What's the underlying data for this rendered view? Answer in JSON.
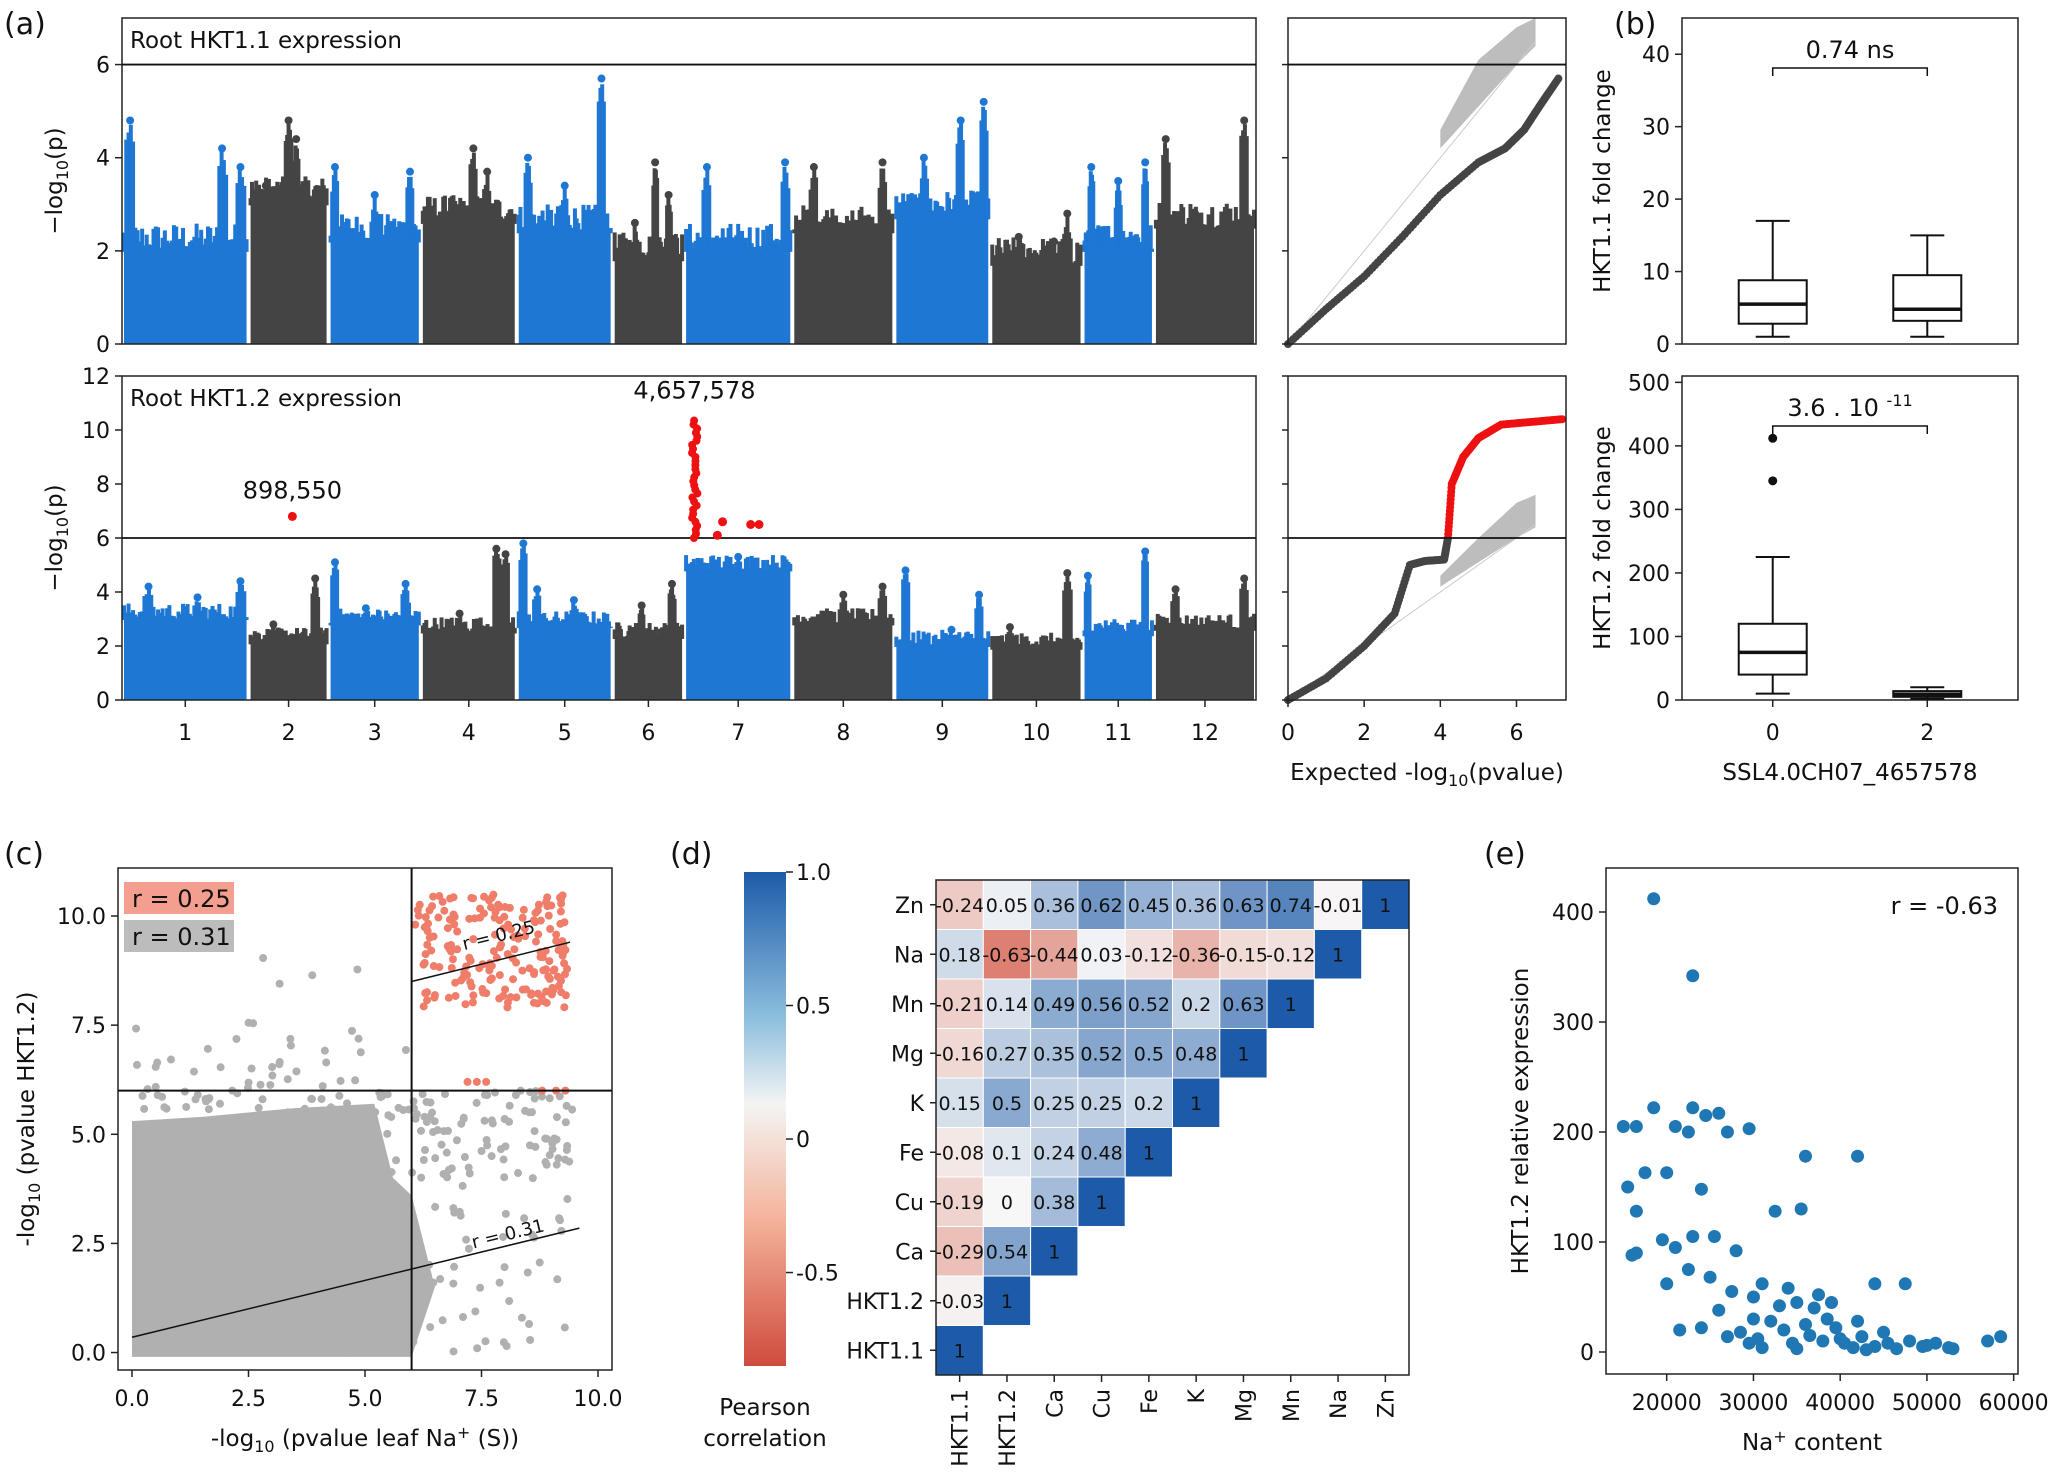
{
  "colors": {
    "blue": "#1f77d4",
    "dark": "#444444",
    "red": "#ee1111",
    "grey": "#b0b0b0",
    "salmon": "#ef7d69",
    "heat_blue": "#2166ac",
    "heat_red": "#d6604d"
  },
  "chart_data": [
    {
      "id": "a_top",
      "panel": "(a)",
      "type": "scatter",
      "title": "Root HKT1.1 expression",
      "ylabel": "−log10(p)",
      "ylim": [
        0,
        7
      ],
      "yticks": [
        "0",
        "2",
        "4",
        "6"
      ],
      "threshold": 6,
      "chromosomes": [
        "1",
        "2",
        "3",
        "4",
        "5",
        "6",
        "7",
        "8",
        "9",
        "10",
        "11",
        "12"
      ],
      "series": [
        {
          "chrom": "1",
          "base": 2.0,
          "peaks": [
            [
              0.05,
              4.8
            ],
            [
              0.8,
              4.2
            ],
            [
              0.95,
              3.8
            ]
          ]
        },
        {
          "chrom": "2",
          "base": 3.0,
          "peaks": [
            [
              0.2,
              3.4
            ],
            [
              0.5,
              4.8
            ],
            [
              0.6,
              4.4
            ]
          ]
        },
        {
          "chrom": "3",
          "base": 2.2,
          "peaks": [
            [
              0.05,
              3.8
            ],
            [
              0.5,
              3.2
            ],
            [
              0.9,
              3.7
            ]
          ]
        },
        {
          "chrom": "4",
          "base": 2.6,
          "peaks": [
            [
              0.3,
              2.8
            ],
            [
              0.55,
              4.2
            ],
            [
              0.7,
              3.7
            ]
          ]
        },
        {
          "chrom": "5",
          "base": 2.4,
          "peaks": [
            [
              0.1,
              4.0
            ],
            [
              0.5,
              3.4
            ],
            [
              0.9,
              5.7
            ]
          ]
        },
        {
          "chrom": "6",
          "base": 1.8,
          "peaks": [
            [
              0.3,
              2.6
            ],
            [
              0.6,
              3.9
            ],
            [
              0.8,
              3.2
            ]
          ]
        },
        {
          "chrom": "7",
          "base": 2.0,
          "peaks": [
            [
              0.2,
              3.8
            ],
            [
              0.5,
              2.2
            ],
            [
              0.95,
              3.9
            ]
          ]
        },
        {
          "chrom": "8",
          "base": 2.4,
          "peaks": [
            [
              0.2,
              3.8
            ],
            [
              0.55,
              2.4
            ],
            [
              0.9,
              3.9
            ]
          ]
        },
        {
          "chrom": "9",
          "base": 2.7,
          "peaks": [
            [
              0.3,
              4.0
            ],
            [
              0.7,
              4.8
            ],
            [
              0.95,
              5.2
            ]
          ]
        },
        {
          "chrom": "10",
          "base": 1.7,
          "peaks": [
            [
              0.3,
              2.3
            ],
            [
              0.7,
              2.2
            ],
            [
              0.85,
              2.8
            ]
          ]
        },
        {
          "chrom": "11",
          "base": 2.0,
          "peaks": [
            [
              0.1,
              3.8
            ],
            [
              0.5,
              3.5
            ],
            [
              0.9,
              3.9
            ]
          ]
        },
        {
          "chrom": "12",
          "base": 2.5,
          "peaks": [
            [
              0.1,
              4.4
            ],
            [
              0.4,
              2.8
            ],
            [
              0.9,
              4.8
            ]
          ]
        }
      ]
    },
    {
      "id": "a_bottom",
      "panel": "(a)",
      "type": "scatter",
      "title": "Root HKT1.2 expression",
      "ylabel": "−log10(p)",
      "ylim": [
        0,
        12
      ],
      "yticks": [
        "0",
        "2",
        "4",
        "6",
        "8",
        "10",
        "12"
      ],
      "threshold": 6,
      "chromosomes": [
        "1",
        "2",
        "3",
        "4",
        "5",
        "6",
        "7",
        "8",
        "9",
        "10",
        "11",
        "12"
      ],
      "annotations": [
        {
          "text": "898,550",
          "chrom": "2",
          "frac": 0.55,
          "y": 6.8
        },
        {
          "text": "4,657,578",
          "chrom": "7",
          "frac": 0.08,
          "y": 10.5
        }
      ],
      "significant_points": [
        {
          "chrom": "2",
          "frac": 0.55,
          "y": 6.8
        },
        {
          "chrom": "7",
          "frac": 0.35,
          "y": 6.6
        },
        {
          "chrom": "7",
          "frac": 0.3,
          "y": 6.1
        },
        {
          "chrom": "7",
          "frac": 0.62,
          "y": 6.5
        },
        {
          "chrom": "7",
          "frac": 0.7,
          "y": 6.5
        }
      ],
      "series": [
        {
          "chrom": "1",
          "base": 3.0,
          "peaks": [
            [
              0.2,
              4.2
            ],
            [
              0.6,
              3.8
            ],
            [
              0.95,
              4.4
            ]
          ]
        },
        {
          "chrom": "2",
          "base": 2.1,
          "peaks": [
            [
              0.3,
              2.8
            ],
            [
              0.85,
              4.5
            ]
          ]
        },
        {
          "chrom": "3",
          "base": 2.8,
          "peaks": [
            [
              0.05,
              5.1
            ],
            [
              0.4,
              3.4
            ],
            [
              0.85,
              4.3
            ]
          ]
        },
        {
          "chrom": "4",
          "base": 2.5,
          "peaks": [
            [
              0.4,
              3.2
            ],
            [
              0.8,
              5.6
            ],
            [
              0.9,
              5.4
            ]
          ]
        },
        {
          "chrom": "5",
          "base": 2.7,
          "peaks": [
            [
              0.05,
              5.8
            ],
            [
              0.2,
              4.1
            ],
            [
              0.6,
              3.7
            ]
          ]
        },
        {
          "chrom": "6",
          "base": 2.3,
          "peaks": [
            [
              0.4,
              3.5
            ],
            [
              0.85,
              4.3
            ]
          ]
        },
        {
          "chrom": "7",
          "base": 4.8,
          "peaks": [
            [
              0.5,
              5.3
            ]
          ]
        },
        {
          "chrom": "8",
          "base": 2.8,
          "peaks": [
            [
              0.5,
              3.9
            ],
            [
              0.9,
              4.2
            ]
          ]
        },
        {
          "chrom": "9",
          "base": 2.0,
          "peaks": [
            [
              0.1,
              4.8
            ],
            [
              0.6,
              2.6
            ],
            [
              0.9,
              3.9
            ]
          ]
        },
        {
          "chrom": "10",
          "base": 1.9,
          "peaks": [
            [
              0.2,
              2.7
            ],
            [
              0.85,
              4.7
            ]
          ]
        },
        {
          "chrom": "11",
          "base": 2.4,
          "peaks": [
            [
              0.05,
              4.6
            ],
            [
              0.9,
              5.5
            ]
          ]
        },
        {
          "chrom": "12",
          "base": 2.6,
          "peaks": [
            [
              0.2,
              4.1
            ],
            [
              0.9,
              4.5
            ]
          ]
        }
      ]
    },
    {
      "id": "qq_top",
      "panel": "(a)",
      "type": "scatter",
      "xlim": [
        0,
        7.3
      ],
      "ylim": [
        0,
        7
      ],
      "threshold": 6,
      "observed": [
        [
          0,
          0
        ],
        [
          1,
          0.75
        ],
        [
          2,
          1.45
        ],
        [
          3,
          2.3
        ],
        [
          4,
          3.2
        ],
        [
          5,
          3.9
        ],
        [
          5.7,
          4.2
        ],
        [
          6.2,
          4.6
        ],
        [
          6.6,
          5.1
        ],
        [
          7.1,
          5.7
        ]
      ],
      "ci_band": [
        [
          4.0,
          4.2,
          4.6
        ],
        [
          5.0,
          5.1,
          6.1
        ],
        [
          6.0,
          6.0,
          6.8
        ],
        [
          6.5,
          6.4,
          7.0
        ]
      ]
    },
    {
      "id": "qq_bottom",
      "panel": "(a)",
      "type": "scatter",
      "xlabel": "Expected -log10(pvalue)",
      "xlim": [
        0,
        7.3
      ],
      "ylim": [
        0,
        12
      ],
      "xticks": [
        "0",
        "2",
        "4",
        "6"
      ],
      "threshold": 6,
      "observed": [
        [
          0,
          0
        ],
        [
          1,
          0.8
        ],
        [
          2,
          2.0
        ],
        [
          2.8,
          3.2
        ],
        [
          3.2,
          5.0
        ],
        [
          3.6,
          5.15
        ],
        [
          4.1,
          5.2
        ],
        [
          4.2,
          6.0
        ],
        [
          4.3,
          8.0
        ],
        [
          4.6,
          9.0
        ],
        [
          5.0,
          9.7
        ],
        [
          5.6,
          10.2
        ],
        [
          6.4,
          10.3
        ],
        [
          7.2,
          10.4
        ]
      ],
      "ci_band": [
        [
          4.0,
          4.2,
          4.6
        ],
        [
          5.0,
          5.1,
          6.0
        ],
        [
          6.0,
          6.0,
          7.3
        ],
        [
          6.5,
          6.4,
          7.6
        ]
      ]
    },
    {
      "id": "b_top",
      "panel": "(b)",
      "type": "box",
      "ylabel": "HKT1.1 fold change",
      "ylim": [
        0,
        45
      ],
      "yticks": [
        "0",
        "10",
        "20",
        "30",
        "40"
      ],
      "groups": [
        {
          "q1": 2.8,
          "median": 5.5,
          "q3": 8.8,
          "whislo": 1,
          "whishi": 17
        },
        {
          "q1": 3.2,
          "median": 4.8,
          "q3": 9.5,
          "whislo": 1,
          "whishi": 15
        }
      ],
      "annotation": "0.74 ns"
    },
    {
      "id": "b_bottom",
      "panel": "(b)",
      "type": "box",
      "ylabel": "HKT1.2 fold change",
      "xlabel": "SSL4.0CH07_4657578",
      "ylim": [
        0,
        510
      ],
      "yticks": [
        "0",
        "100",
        "200",
        "300",
        "400",
        "500"
      ],
      "categories": [
        "0",
        "2"
      ],
      "groups": [
        {
          "q1": 40,
          "median": 75,
          "q3": 120,
          "whislo": 10,
          "whishi": 225,
          "fliers": [
            345,
            412
          ]
        },
        {
          "q1": 5,
          "median": 9,
          "q3": 14,
          "whislo": 2,
          "whishi": 20,
          "fliers": []
        }
      ],
      "annotation_base": "3.6 . 10",
      "annotation_exp": "-11"
    },
    {
      "id": "c",
      "panel": "(c)",
      "type": "scatter",
      "xlabel": "-log10 (pvalue leaf Na+ (S))",
      "ylabel": "-log10 (pvalue HKT1.2)",
      "xlim": [
        -0.3,
        10.3
      ],
      "ylim": [
        -0.4,
        11.1
      ],
      "xticks": [
        "0.0",
        "2.5",
        "5.0",
        "7.5",
        "10.0"
      ],
      "yticks": [
        "0.0",
        "2.5",
        "5.0",
        "7.5",
        "10.0"
      ],
      "thresholds": {
        "x": 6,
        "y": 6
      },
      "legend": [
        "r = 0.25",
        "r = 0.31"
      ],
      "fits": [
        {
          "label": "r = 0.25",
          "x": [
            6.0,
            9.4
          ],
          "y": [
            8.5,
            9.4
          ]
        },
        {
          "label": "r = 0.31",
          "x": [
            0.0,
            9.6
          ],
          "y": [
            0.35,
            2.85
          ]
        }
      ],
      "highlight_points": [
        [
          7.2,
          6.2
        ],
        [
          7.4,
          6.2
        ],
        [
          7.6,
          6.2
        ],
        [
          8.8,
          6.0
        ],
        [
          9.1,
          6.0
        ],
        [
          9.3,
          6.0
        ]
      ]
    },
    {
      "id": "d",
      "panel": "(d)",
      "type": "heatmap",
      "colorbar_label": "Pearson correlation",
      "colorbar_ticks": [
        "1.0",
        "0.5",
        "0",
        "-0.5"
      ],
      "row_labels": [
        "Zn",
        "Na",
        "Mn",
        "Mg",
        "K",
        "Fe",
        "Cu",
        "Ca",
        "HKT1.2",
        "HKT1.1"
      ],
      "col_labels": [
        "HKT1.1",
        "HKT1.2",
        "Ca",
        "Cu",
        "Fe",
        "K",
        "Mg",
        "Mn",
        "Na",
        "Zn"
      ],
      "matrix": [
        [
          "-0.24",
          "0.05",
          "0.36",
          "0.62",
          "0.45",
          "0.36",
          "0.63",
          "0.74",
          "-0.01",
          "1"
        ],
        [
          "0.18",
          "-0.63",
          "-0.44",
          "0.03",
          "-0.12",
          "-0.36",
          "-0.15",
          "-0.12",
          "1"
        ],
        [
          "-0.21",
          "0.14",
          "0.49",
          "0.56",
          "0.52",
          "0.2",
          "0.63",
          "1"
        ],
        [
          "-0.16",
          "0.27",
          "0.35",
          "0.52",
          "0.5",
          "0.48",
          "1"
        ],
        [
          "0.15",
          "0.5",
          "0.25",
          "0.25",
          "0.2",
          "1"
        ],
        [
          "-0.08",
          "0.1",
          "0.24",
          "0.48",
          "1"
        ],
        [
          "-0.19",
          "0",
          "0.38",
          "1"
        ],
        [
          "-0.29",
          "0.54",
          "1"
        ],
        [
          "-0.03",
          "1"
        ],
        [
          "1"
        ]
      ]
    },
    {
      "id": "e",
      "panel": "(e)",
      "type": "scatter",
      "xlabel": "Na+ content",
      "ylabel": "HKT1.2 relative expression",
      "xlim": [
        13000,
        60500
      ],
      "ylim": [
        -20,
        440
      ],
      "xticks": [
        20000,
        30000,
        40000,
        50000,
        60000
      ],
      "yticks": [
        0,
        100,
        200,
        300,
        400
      ],
      "annotation": "r = -0.63",
      "points": [
        [
          18500,
          412
        ],
        [
          23000,
          342
        ],
        [
          18500,
          222
        ],
        [
          23000,
          222
        ],
        [
          26000,
          217
        ],
        [
          15000,
          205
        ],
        [
          16500,
          205
        ],
        [
          21000,
          205
        ],
        [
          22500,
          200
        ],
        [
          24500,
          215
        ],
        [
          27000,
          200
        ],
        [
          29500,
          203
        ],
        [
          20000,
          163
        ],
        [
          17500,
          163
        ],
        [
          36000,
          178
        ],
        [
          42000,
          178
        ],
        [
          15500,
          150
        ],
        [
          16500,
          128
        ],
        [
          24000,
          148
        ],
        [
          16000,
          88
        ],
        [
          19500,
          102
        ],
        [
          21000,
          95
        ],
        [
          23000,
          105
        ],
        [
          25500,
          105
        ],
        [
          28000,
          92
        ],
        [
          32500,
          128
        ],
        [
          35500,
          130
        ],
        [
          16500,
          90
        ],
        [
          20000,
          62
        ],
        [
          22500,
          75
        ],
        [
          25000,
          68
        ],
        [
          27500,
          55
        ],
        [
          30000,
          50
        ],
        [
          31000,
          62
        ],
        [
          33000,
          42
        ],
        [
          35000,
          45
        ],
        [
          37000,
          40
        ],
        [
          38500,
          30
        ],
        [
          44000,
          62
        ],
        [
          47500,
          62
        ],
        [
          21500,
          20
        ],
        [
          24000,
          22
        ],
        [
          26000,
          38
        ],
        [
          28500,
          18
        ],
        [
          29500,
          8
        ],
        [
          30500,
          12
        ],
        [
          32000,
          28
        ],
        [
          33500,
          20
        ],
        [
          34500,
          8
        ],
        [
          36500,
          15
        ],
        [
          38000,
          10
        ],
        [
          39500,
          22
        ],
        [
          40500,
          8
        ],
        [
          41500,
          4
        ],
        [
          42500,
          14
        ],
        [
          44000,
          5
        ],
        [
          45500,
          8
        ],
        [
          46500,
          3
        ],
        [
          48000,
          10
        ],
        [
          49500,
          5
        ],
        [
          51000,
          8
        ],
        [
          52500,
          4
        ],
        [
          53000,
          3
        ],
        [
          57000,
          10
        ],
        [
          58500,
          14
        ],
        [
          30000,
          30
        ],
        [
          34000,
          58
        ],
        [
          36000,
          25
        ],
        [
          37500,
          52
        ],
        [
          39000,
          45
        ],
        [
          42000,
          28
        ],
        [
          27000,
          14
        ],
        [
          31000,
          4
        ],
        [
          35000,
          3
        ],
        [
          43000,
          2
        ],
        [
          40000,
          12
        ],
        [
          45000,
          18
        ],
        [
          50000,
          6
        ]
      ]
    }
  ]
}
